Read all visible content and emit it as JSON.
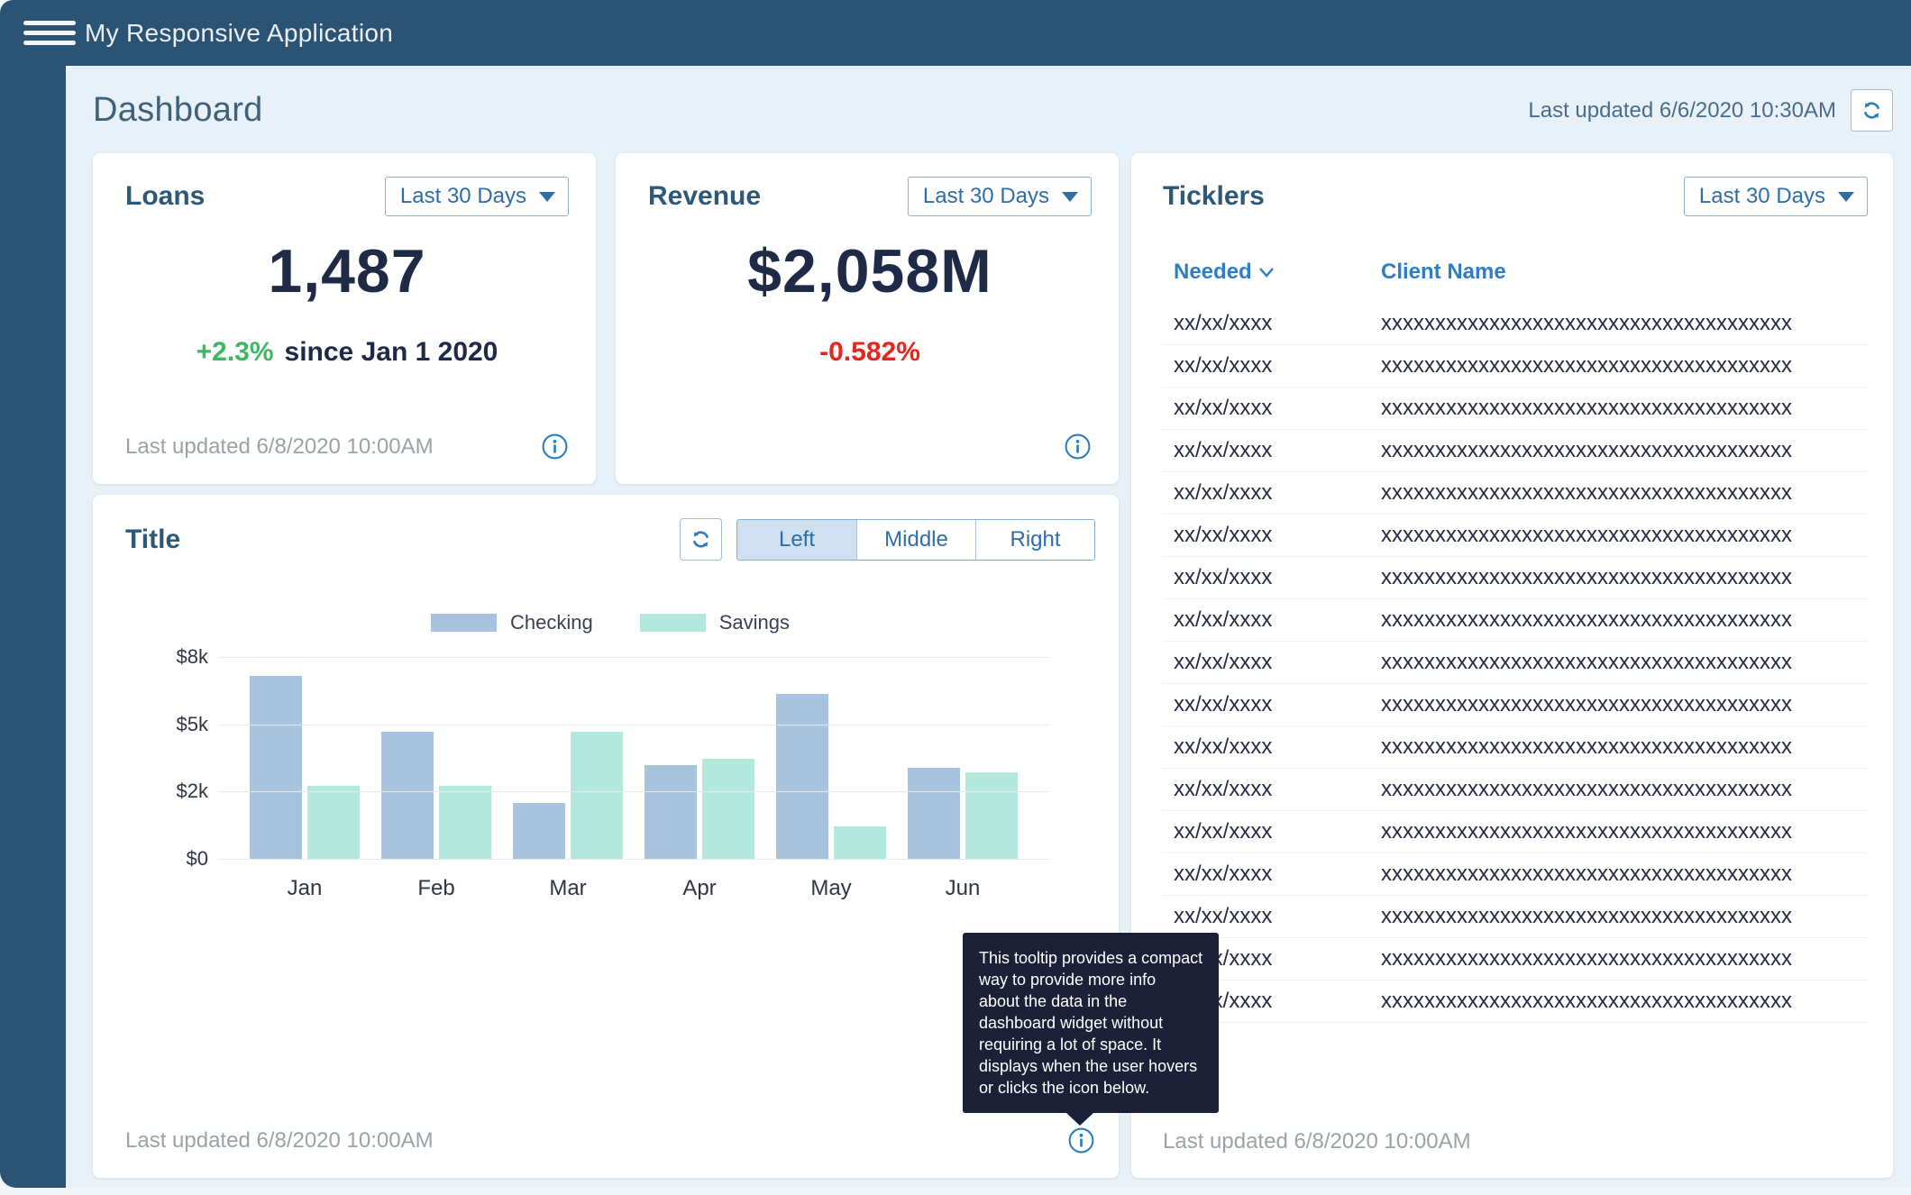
{
  "navbar": {
    "title": "My Responsive Application"
  },
  "page": {
    "title": "Dashboard",
    "last_updated": "Last updated 6/6/2020 10:30AM"
  },
  "kpis": {
    "loans": {
      "title": "Loans",
      "range": "Last 30 Days",
      "value": "1,487",
      "delta": "+2.3%",
      "delta_note": "since Jan 1 2020",
      "last_updated": "Last updated 6/8/2020 10:00AM"
    },
    "revenue": {
      "title": "Revenue",
      "range": "Last 30 Days",
      "value": "$2,058M",
      "delta": "-0.582%"
    }
  },
  "chart_widget": {
    "title": "Title",
    "segments": [
      "Left",
      "Middle",
      "Right"
    ],
    "selected_segment": "Left",
    "last_updated": "Last updated 6/8/2020 10:00AM",
    "tooltip_lines": [
      "This tooltip provides a compact",
      "way to provide more info",
      "about the data in the",
      "dashboard widget without",
      "requiring a lot of space. It",
      "displays when the user hovers",
      "or clicks the icon below."
    ]
  },
  "chart_data": {
    "type": "bar",
    "title": "Title",
    "categories": [
      "Jan",
      "Feb",
      "Mar",
      "Apr",
      "May",
      "Jun"
    ],
    "series": [
      {
        "name": "Checking",
        "color": "#a7c3de",
        "values": [
          7.2,
          4.7,
          1.7,
          3.2,
          6.4,
          3.1
        ]
      },
      {
        "name": "Savings",
        "color": "#b3e9dd",
        "values": [
          2.3,
          2.3,
          4.7,
          3.5,
          1.0,
          2.9
        ]
      }
    ],
    "units": "thousands USD",
    "y_ticks": [
      {
        "label": "$0",
        "value": 0
      },
      {
        "label": "$2k",
        "value": 2
      },
      {
        "label": "$5k",
        "value": 5
      },
      {
        "label": "$8k",
        "value": 8
      }
    ],
    "ylim": [
      0,
      8
    ],
    "grid": true,
    "legend_position": "top"
  },
  "ticklers": {
    "title": "Ticklers",
    "range": "Last 30 Days",
    "columns": [
      "Needed",
      "Client Name"
    ],
    "sorted_column": "Needed",
    "rows": [
      {
        "needed": "xx/xx/xxxx",
        "client": "xxxxxxxxxxxxxxxxxxxxxxxxxxxxxxxxxxxxxx"
      },
      {
        "needed": "xx/xx/xxxx",
        "client": "xxxxxxxxxxxxxxxxxxxxxxxxxxxxxxxxxxxxxx"
      },
      {
        "needed": "xx/xx/xxxx",
        "client": "xxxxxxxxxxxxxxxxxxxxxxxxxxxxxxxxxxxxxx"
      },
      {
        "needed": "xx/xx/xxxx",
        "client": "xxxxxxxxxxxxxxxxxxxxxxxxxxxxxxxxxxxxxx"
      },
      {
        "needed": "xx/xx/xxxx",
        "client": "xxxxxxxxxxxxxxxxxxxxxxxxxxxxxxxxxxxxxx"
      },
      {
        "needed": "xx/xx/xxxx",
        "client": "xxxxxxxxxxxxxxxxxxxxxxxxxxxxxxxxxxxxxx"
      },
      {
        "needed": "xx/xx/xxxx",
        "client": "xxxxxxxxxxxxxxxxxxxxxxxxxxxxxxxxxxxxxx"
      },
      {
        "needed": "xx/xx/xxxx",
        "client": "xxxxxxxxxxxxxxxxxxxxxxxxxxxxxxxxxxxxxx"
      },
      {
        "needed": "xx/xx/xxxx",
        "client": "xxxxxxxxxxxxxxxxxxxxxxxxxxxxxxxxxxxxxx"
      },
      {
        "needed": "xx/xx/xxxx",
        "client": "xxxxxxxxxxxxxxxxxxxxxxxxxxxxxxxxxxxxxx"
      },
      {
        "needed": "xx/xx/xxxx",
        "client": "xxxxxxxxxxxxxxxxxxxxxxxxxxxxxxxxxxxxxx"
      },
      {
        "needed": "xx/xx/xxxx",
        "client": "xxxxxxxxxxxxxxxxxxxxxxxxxxxxxxxxxxxxxx"
      },
      {
        "needed": "xx/xx/xxxx",
        "client": "xxxxxxxxxxxxxxxxxxxxxxxxxxxxxxxxxxxxxx"
      },
      {
        "needed": "xx/xx/xxxx",
        "client": "xxxxxxxxxxxxxxxxxxxxxxxxxxxxxxxxxxxxxx"
      },
      {
        "needed": "xx/xx/xxxx",
        "client": "xxxxxxxxxxxxxxxxxxxxxxxxxxxxxxxxxxxxxx"
      },
      {
        "needed": "xx/xx/xxxx",
        "client": "xxxxxxxxxxxxxxxxxxxxxxxxxxxxxxxxxxxxxx"
      },
      {
        "needed": "xx/xx/xxxx",
        "client": "xxxxxxxxxxxxxxxxxxxxxxxxxxxxxxxxxxxxxx"
      }
    ],
    "last_updated": "Last updated 6/8/2020 10:00AM"
  },
  "colors": {
    "navbar": "#2b5373",
    "content_bg": "#e9f1f8",
    "accent_blue": "#2d7dbc",
    "table_header_blue": "#2e7ec6",
    "heading": "#2e5878",
    "number": "#1f2a47",
    "positive": "#3cb95f",
    "negative": "#e8251d",
    "muted_text": "#99a1a9",
    "checking_bar": "#a7c3de",
    "savings_bar": "#b3e9dd",
    "tooltip_bg": "#1c2138"
  }
}
